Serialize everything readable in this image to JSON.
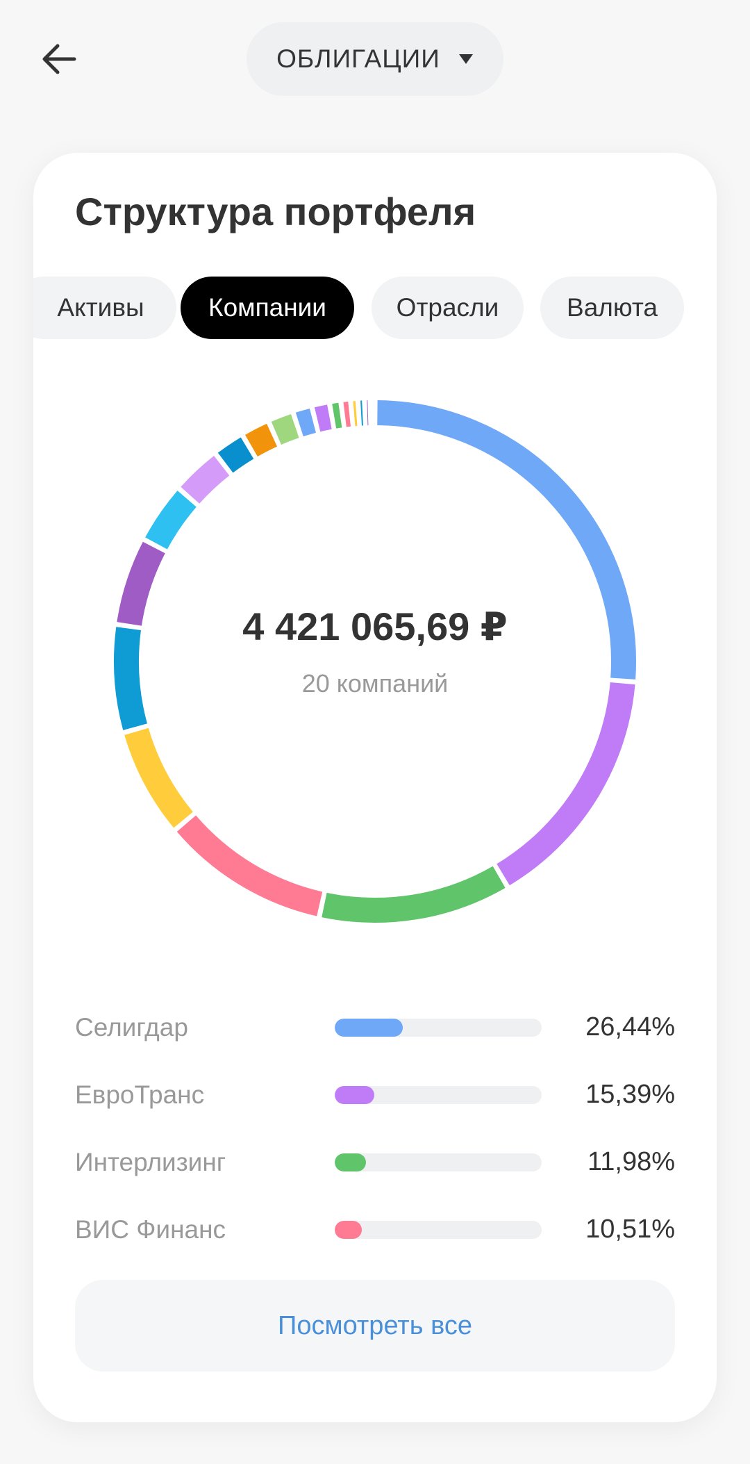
{
  "header": {
    "back_icon": "arrow-left-icon",
    "selector_label": "ОБЛИГАЦИИ",
    "selector_icon": "triangle-down-icon"
  },
  "card": {
    "title": "Структура портфеля",
    "tabs": [
      {
        "label": "Активы",
        "active": false
      },
      {
        "label": "Компании",
        "active": true
      },
      {
        "label": "Отрасли",
        "active": false
      },
      {
        "label": "Валюта",
        "active": false
      }
    ],
    "total": "4 421 065,69 ₽",
    "count_label": "20 компаний",
    "legend": [
      {
        "name": "Селигдар",
        "value_label": "26,44%",
        "value": 26.44,
        "color": "#6ea8f7"
      },
      {
        "name": "ЕвроТранс",
        "value_label": "15,39%",
        "value": 15.39,
        "color": "#c07cf7"
      },
      {
        "name": "Интерлизинг",
        "value_label": "11,98%",
        "value": 11.98,
        "color": "#5fc46a"
      },
      {
        "name": "ВИС Финанс",
        "value_label": "10,51%",
        "value": 10.51,
        "color": "#ff7b93"
      }
    ],
    "see_all_label": "Посмотреть все"
  },
  "chart_data": {
    "type": "pie",
    "series": [
      {
        "value": 26.44,
        "color": "#6ea8f7"
      },
      {
        "value": 15.39,
        "color": "#c07cf7"
      },
      {
        "value": 11.98,
        "color": "#5fc46a"
      },
      {
        "value": 10.51,
        "color": "#ff7b93"
      },
      {
        "value": 6.8,
        "color": "#ffcd3c"
      },
      {
        "value": 6.7,
        "color": "#0f9bd4"
      },
      {
        "value": 5.5,
        "color": "#a05cc5"
      },
      {
        "value": 3.8,
        "color": "#2ec0f0"
      },
      {
        "value": 3.1,
        "color": "#d59bf9"
      },
      {
        "value": 2.0,
        "color": "#0a8fce"
      },
      {
        "value": 1.8,
        "color": "#f2940b"
      },
      {
        "value": 1.6,
        "color": "#9fd77e"
      },
      {
        "value": 1.2,
        "color": "#6ea8f7"
      },
      {
        "value": 1.1,
        "color": "#c07cf7"
      },
      {
        "value": 0.7,
        "color": "#5fc46a"
      },
      {
        "value": 0.6,
        "color": "#ff7b93"
      },
      {
        "value": 0.45,
        "color": "#ffcd3c"
      },
      {
        "value": 0.4,
        "color": "#0f9bd4"
      },
      {
        "value": 0.35,
        "color": "#a05cc5"
      },
      {
        "value": 0.3,
        "color": "#2ec0f0"
      }
    ]
  }
}
